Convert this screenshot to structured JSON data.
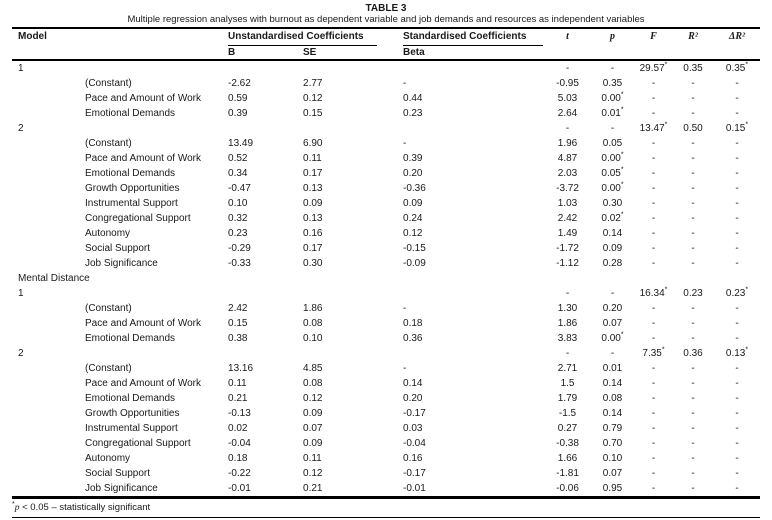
{
  "title": "TABLE 3",
  "subtitle": "Multiple regression analyses with burnout as dependent variable and job demands and resources as independent variables",
  "table": {
    "header": {
      "model": "Model",
      "unstd_group": "Unstandardised Coefficients",
      "std_group": "Standardised Coefficients",
      "b": "B",
      "se": "SE",
      "beta": "Beta",
      "t": "t",
      "p": "p",
      "f": "F",
      "r2": "R²",
      "dr2": "ΔR²"
    },
    "rows": [
      {
        "type": "model",
        "label": "1",
        "t": "-",
        "p": "-",
        "f": "29.57*",
        "r2": "0.35",
        "dr2": "0.35*"
      },
      {
        "type": "var",
        "label": "(Constant)",
        "b": "-2.62",
        "se": "2.77",
        "beta": "-",
        "t": "-0.95",
        "p": "0.35",
        "f": "-",
        "r2": "-",
        "dr2": "-"
      },
      {
        "type": "var",
        "label": "Pace and Amount of Work",
        "b": "0.59",
        "se": "0.12",
        "beta": "0.44",
        "t": "5.03",
        "p": "0.00*",
        "f": "-",
        "r2": "-",
        "dr2": "-"
      },
      {
        "type": "var",
        "label": "Emotional Demands",
        "b": "0.39",
        "se": "0.15",
        "beta": "0.23",
        "t": "2.64",
        "p": "0.01*",
        "f": "-",
        "r2": "-",
        "dr2": "-"
      },
      {
        "type": "model",
        "label": "2",
        "t": "-",
        "p": "-",
        "f": "13.47*",
        "r2": "0.50",
        "dr2": "0.15*"
      },
      {
        "type": "var",
        "label": "(Constant)",
        "b": "13.49",
        "se": "6.90",
        "beta": "-",
        "t": "1.96",
        "p": "0.05",
        "f": "-",
        "r2": "-",
        "dr2": "-"
      },
      {
        "type": "var",
        "label": "Pace and Amount of Work",
        "b": "0.52",
        "se": "0.11",
        "beta": "0.39",
        "t": "4.87",
        "p": "0.00*",
        "f": "-",
        "r2": "-",
        "dr2": "-"
      },
      {
        "type": "var",
        "label": "Emotional Demands",
        "b": "0.34",
        "se": "0.17",
        "beta": "0.20",
        "t": "2.03",
        "p": "0.05*",
        "f": "-",
        "r2": "-",
        "dr2": "-"
      },
      {
        "type": "var",
        "label": "Growth Opportunities",
        "b": "-0.47",
        "se": "0.13",
        "beta": "-0.36",
        "t": "-3.72",
        "p": "0.00*",
        "f": "-",
        "r2": "-",
        "dr2": "-"
      },
      {
        "type": "var",
        "label": "Instrumental Support",
        "b": "0.10",
        "se": "0.09",
        "beta": "0.09",
        "t": "1.03",
        "p": "0.30",
        "f": "-",
        "r2": "-",
        "dr2": "-"
      },
      {
        "type": "var",
        "label": "Congregational Support",
        "b": "0.32",
        "se": "0.13",
        "beta": "0.24",
        "t": "2.42",
        "p": "0.02*",
        "f": "-",
        "r2": "-",
        "dr2": "-"
      },
      {
        "type": "var",
        "label": "Autonomy",
        "b": "0.23",
        "se": "0.16",
        "beta": "0.12",
        "t": "1.49",
        "p": "0.14",
        "f": "-",
        "r2": "-",
        "dr2": "-"
      },
      {
        "type": "var",
        "label": "Social Support",
        "b": "-0.29",
        "se": "0.17",
        "beta": "-0.15",
        "t": "-1.72",
        "p": "0.09",
        "f": "-",
        "r2": "-",
        "dr2": "-"
      },
      {
        "type": "var",
        "label": "Job Significance",
        "b": "-0.33",
        "se": "0.30",
        "beta": "-0.09",
        "t": "-1.12",
        "p": "0.28",
        "f": "-",
        "r2": "-",
        "dr2": "-"
      },
      {
        "type": "section",
        "label": "Mental Distance"
      },
      {
        "type": "model",
        "label": "1",
        "t": "-",
        "p": "-",
        "f": "16.34*",
        "r2": "0.23",
        "dr2": "0.23*"
      },
      {
        "type": "var",
        "label": "(Constant)",
        "b": "2.42",
        "se": "1.86",
        "beta": "-",
        "t": "1.30",
        "p": "0.20",
        "f": "-",
        "r2": "-",
        "dr2": "-"
      },
      {
        "type": "var",
        "label": "Pace and Amount of Work",
        "b": "0.15",
        "se": "0.08",
        "beta": "0.18",
        "t": "1.86",
        "p": "0.07",
        "f": "-",
        "r2": "-",
        "dr2": "-"
      },
      {
        "type": "var",
        "label": "Emotional Demands",
        "b": "0.38",
        "se": "0.10",
        "beta": "0.36",
        "t": "3.83",
        "p": "0.00*",
        "f": "-",
        "r2": "-",
        "dr2": "-"
      },
      {
        "type": "model",
        "label": "2",
        "t": "-",
        "p": "-",
        "f": "7.35*",
        "r2": "0.36",
        "dr2": "0.13*"
      },
      {
        "type": "var",
        "label": "(Constant)",
        "b": "13.16",
        "se": "4.85",
        "beta": "-",
        "t": "2.71",
        "p": "0.01",
        "f": "-",
        "r2": "-",
        "dr2": "-"
      },
      {
        "type": "var",
        "label": "Pace and Amount of Work",
        "b": "0.11",
        "se": "0.08",
        "beta": "0.14",
        "t": "1.5",
        "p": "0.14",
        "f": "-",
        "r2": "-",
        "dr2": "-"
      },
      {
        "type": "var",
        "label": "Emotional Demands",
        "b": "0.21",
        "se": "0.12",
        "beta": "0.20",
        "t": "1.79",
        "p": "0.08",
        "f": "-",
        "r2": "-",
        "dr2": "-"
      },
      {
        "type": "var",
        "label": "Growth Opportunities",
        "b": "-0.13",
        "se": "0.09",
        "beta": "-0.17",
        "t": "-1.5",
        "p": "0.14",
        "f": "-",
        "r2": "-",
        "dr2": "-"
      },
      {
        "type": "var",
        "label": "Instrumental Support",
        "b": "0.02",
        "se": "0.07",
        "beta": "0.03",
        "t": "0.27",
        "p": "0.79",
        "f": "-",
        "r2": "-",
        "dr2": "-"
      },
      {
        "type": "var",
        "label": "Congregational Support",
        "b": "-0.04",
        "se": "0.09",
        "beta": "-0.04",
        "t": "-0.38",
        "p": "0.70",
        "f": "-",
        "r2": "-",
        "dr2": "-"
      },
      {
        "type": "var",
        "label": "Autonomy",
        "b": "0.18",
        "se": "0.11",
        "beta": "0.16",
        "t": "1.66",
        "p": "0.10",
        "f": "-",
        "r2": "-",
        "dr2": "-"
      },
      {
        "type": "var",
        "label": "Social Support",
        "b": "-0.22",
        "se": "0.12",
        "beta": "-0.17",
        "t": "-1.81",
        "p": "0.07",
        "f": "-",
        "r2": "-",
        "dr2": "-"
      },
      {
        "type": "var",
        "label": "Job Significance",
        "b": "-0.01",
        "se": "0.21",
        "beta": "-0.01",
        "t": "-0.06",
        "p": "0.95",
        "f": "-",
        "r2": "-",
        "dr2": "-"
      }
    ]
  },
  "footnote": {
    "star": "*",
    "p_symbol": "p",
    "rest": "< 0.05 – statistically significant"
  }
}
